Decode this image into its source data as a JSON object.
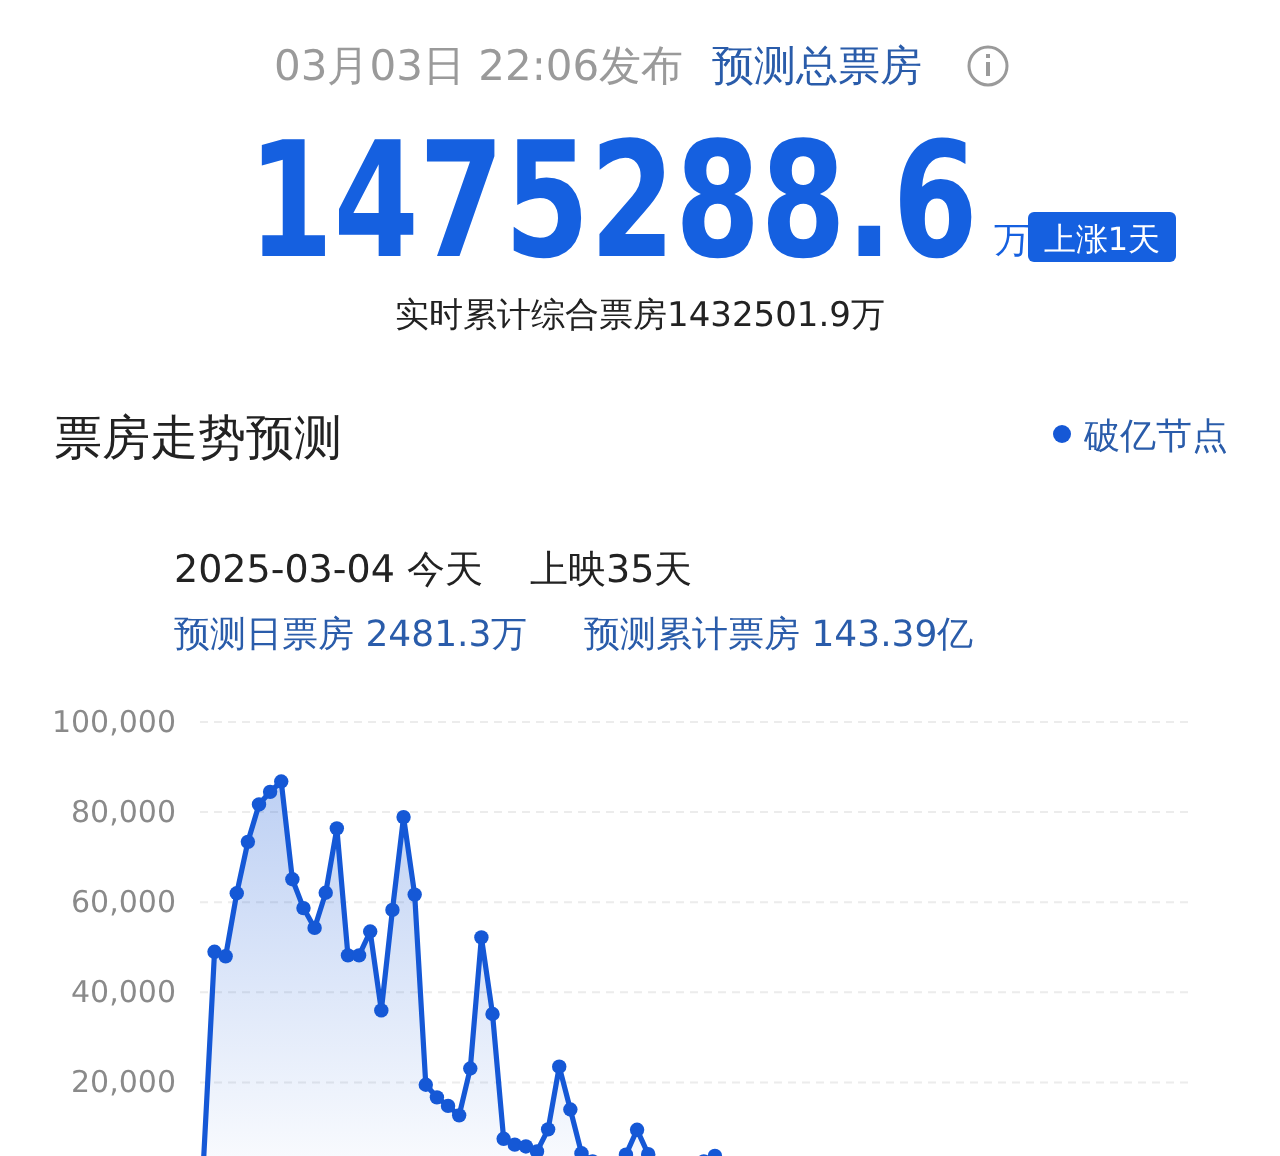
{
  "chart_data": {
    "type": "area",
    "title": "票房走势预测",
    "annotations": [
      "03月03日 22:06发布",
      "预测总票房",
      "1475288.6",
      "万",
      "上涨1天",
      "实时累计综合票房1432501.9万",
      "2025-03-04 今天",
      "上映35天",
      "预测日票房 2481.3万",
      "预测累计票房 143.39亿"
    ],
    "categories": [
      null,
      null,
      null,
      null,
      null,
      null,
      null,
      null,
      null,
      null,
      null,
      null,
      null,
      null,
      null,
      null,
      null,
      null,
      null,
      null,
      null,
      null,
      null,
      null,
      null,
      null,
      null,
      null,
      null,
      null,
      null,
      null,
      null,
      null,
      null,
      null,
      null,
      null,
      null,
      null,
      null,
      null,
      null,
      null,
      null,
      null,
      null,
      null,
      null,
      null,
      null,
      null,
      null,
      null,
      null,
      null,
      null,
      null,
      null,
      null,
      null,
      null,
      null,
      null,
      null,
      null,
      null,
      null,
      null,
      null,
      null,
      null,
      null,
      null,
      null,
      null,
      null,
      null,
      null,
      null,
      null,
      null,
      null,
      null,
      null,
      null,
      null,
      null,
      null,
      null
    ],
    "series": [
      {
        "color": "#1558d6",
        "values": [
          2000,
          49000,
          48000,
          62000,
          73400,
          81700,
          84500,
          86800,
          65100,
          58700,
          54300,
          62100,
          76400,
          48200,
          48200,
          53500,
          36000,
          58300,
          78900,
          61700,
          19500,
          16700,
          14800,
          12700,
          23100,
          52200,
          35200,
          7500,
          6200,
          5800,
          4700,
          9600,
          23500,
          14000,
          4300,
          2500,
          2000,
          1800,
          4000,
          9500,
          4100,
          1500,
          1200,
          1200,
          1300,
          2500,
          3700,
          null,
          null,
          null,
          null,
          null,
          null,
          null,
          null,
          null,
          null,
          null,
          null,
          null,
          null,
          null,
          null,
          null,
          null,
          null,
          null,
          null,
          null,
          null,
          null,
          null,
          null,
          null,
          null,
          null,
          null,
          null,
          null,
          null,
          null,
          null,
          null,
          null,
          null,
          null,
          null,
          null,
          null,
          null
        ]
      },
      {
        "name": "破亿节点",
        "type": "scatter",
        "color": "#1558d6",
        "values": [
          null,
          null,
          null,
          null,
          null,
          null,
          null,
          null,
          null,
          null,
          null,
          null,
          null,
          null,
          null,
          null,
          null,
          null,
          null,
          null,
          null,
          null,
          null,
          null,
          null,
          null,
          null,
          null,
          null,
          null,
          null,
          null,
          null,
          null,
          null,
          null,
          null,
          null,
          null,
          null,
          null,
          null,
          null,
          null,
          null,
          null,
          null,
          null,
          null,
          null,
          null,
          null,
          null,
          null,
          null,
          null,
          null,
          null,
          null,
          null,
          null,
          null,
          null,
          null,
          null,
          null,
          null,
          null,
          null,
          null,
          null,
          null,
          null,
          null,
          null,
          null,
          null,
          null,
          null,
          null,
          null,
          null,
          null,
          null,
          null,
          null,
          null,
          null,
          null,
          null
        ]
      }
    ],
    "ylim": [
      0,
      100000
    ],
    "yticks": [
      {
        "value": 20000,
        "label": "20,000"
      },
      {
        "value": 40000,
        "label": "40,000"
      },
      {
        "value": 60000,
        "label": "60,000"
      },
      {
        "value": 80000,
        "label": "80,000"
      },
      {
        "value": 100000,
        "label": "100,000"
      }
    ],
    "grid": "y",
    "legend": "top right",
    "marker": "circle"
  }
}
